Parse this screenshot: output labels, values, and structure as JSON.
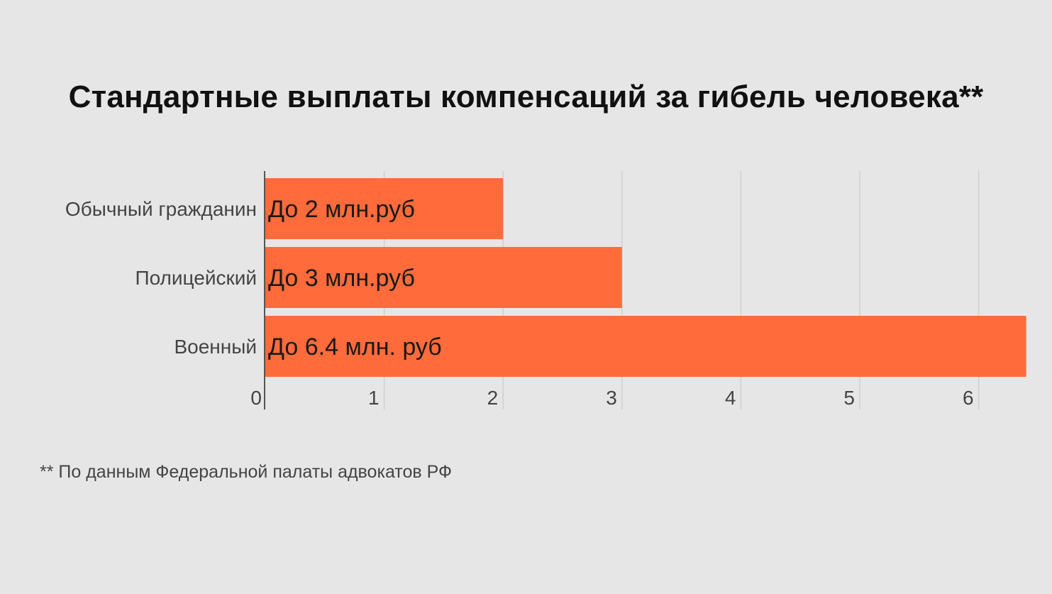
{
  "chart_data": {
    "type": "bar",
    "orientation": "horizontal",
    "title": "Стандартные выплаты компенсаций за гибель человека**",
    "categories": [
      "Обычный гражданин",
      "Полицейский",
      "Военный"
    ],
    "values": [
      2,
      3,
      6.4
    ],
    "data_labels": [
      "До 2 млн.руб",
      "До 3 млн.руб",
      "До 6.4 млн. руб"
    ],
    "xlim": [
      0,
      6.4
    ],
    "xticks": [
      "0",
      "1",
      "2",
      "3",
      "4",
      "5",
      "6"
    ],
    "xlabel": "",
    "ylabel": "",
    "grid": true,
    "bar_color": "#ff6b3b"
  },
  "footnote": "** По данным Федеральной палаты адвокатов РФ"
}
